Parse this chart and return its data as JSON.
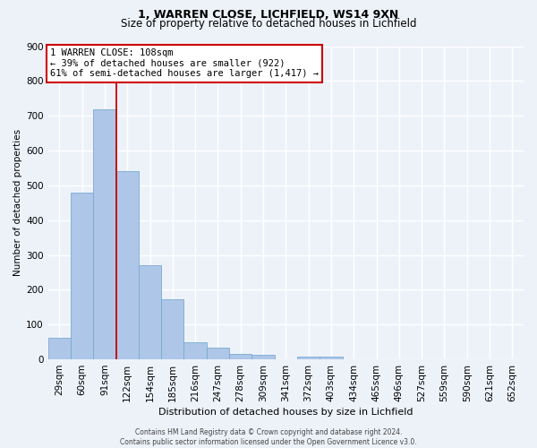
{
  "title": "1, WARREN CLOSE, LICHFIELD, WS14 9XN",
  "subtitle": "Size of property relative to detached houses in Lichfield",
  "xlabel": "Distribution of detached houses by size in Lichfield",
  "ylabel": "Number of detached properties",
  "bar_labels": [
    "29sqm",
    "60sqm",
    "91sqm",
    "122sqm",
    "154sqm",
    "185sqm",
    "216sqm",
    "247sqm",
    "278sqm",
    "309sqm",
    "341sqm",
    "372sqm",
    "403sqm",
    "434sqm",
    "465sqm",
    "496sqm",
    "527sqm",
    "559sqm",
    "590sqm",
    "621sqm",
    "652sqm"
  ],
  "bar_values": [
    62,
    480,
    718,
    542,
    271,
    172,
    48,
    33,
    15,
    12,
    0,
    8,
    8,
    0,
    0,
    0,
    0,
    0,
    0,
    0,
    0
  ],
  "bar_color": "#aec6e8",
  "bar_edge_color": "#7aaad0",
  "vline_color": "#cc0000",
  "vline_pos": 2.5,
  "ylim": [
    0,
    900
  ],
  "yticks": [
    0,
    100,
    200,
    300,
    400,
    500,
    600,
    700,
    800,
    900
  ],
  "annotation_title": "1 WARREN CLOSE: 108sqm",
  "annotation_line1": "← 39% of detached houses are smaller (922)",
  "annotation_line2": "61% of semi-detached houses are larger (1,417) →",
  "annotation_box_color": "#ffffff",
  "annotation_box_edge": "#cc0000",
  "footer1": "Contains HM Land Registry data © Crown copyright and database right 2024.",
  "footer2": "Contains public sector information licensed under the Open Government Licence v3.0.",
  "background_color": "#edf2f9",
  "grid_color": "#ffffff",
  "title_fontsize": 9,
  "subtitle_fontsize": 8.5,
  "xlabel_fontsize": 8,
  "ylabel_fontsize": 7.5,
  "tick_fontsize": 7.5,
  "annot_fontsize": 7.5,
  "footer_fontsize": 5.5
}
